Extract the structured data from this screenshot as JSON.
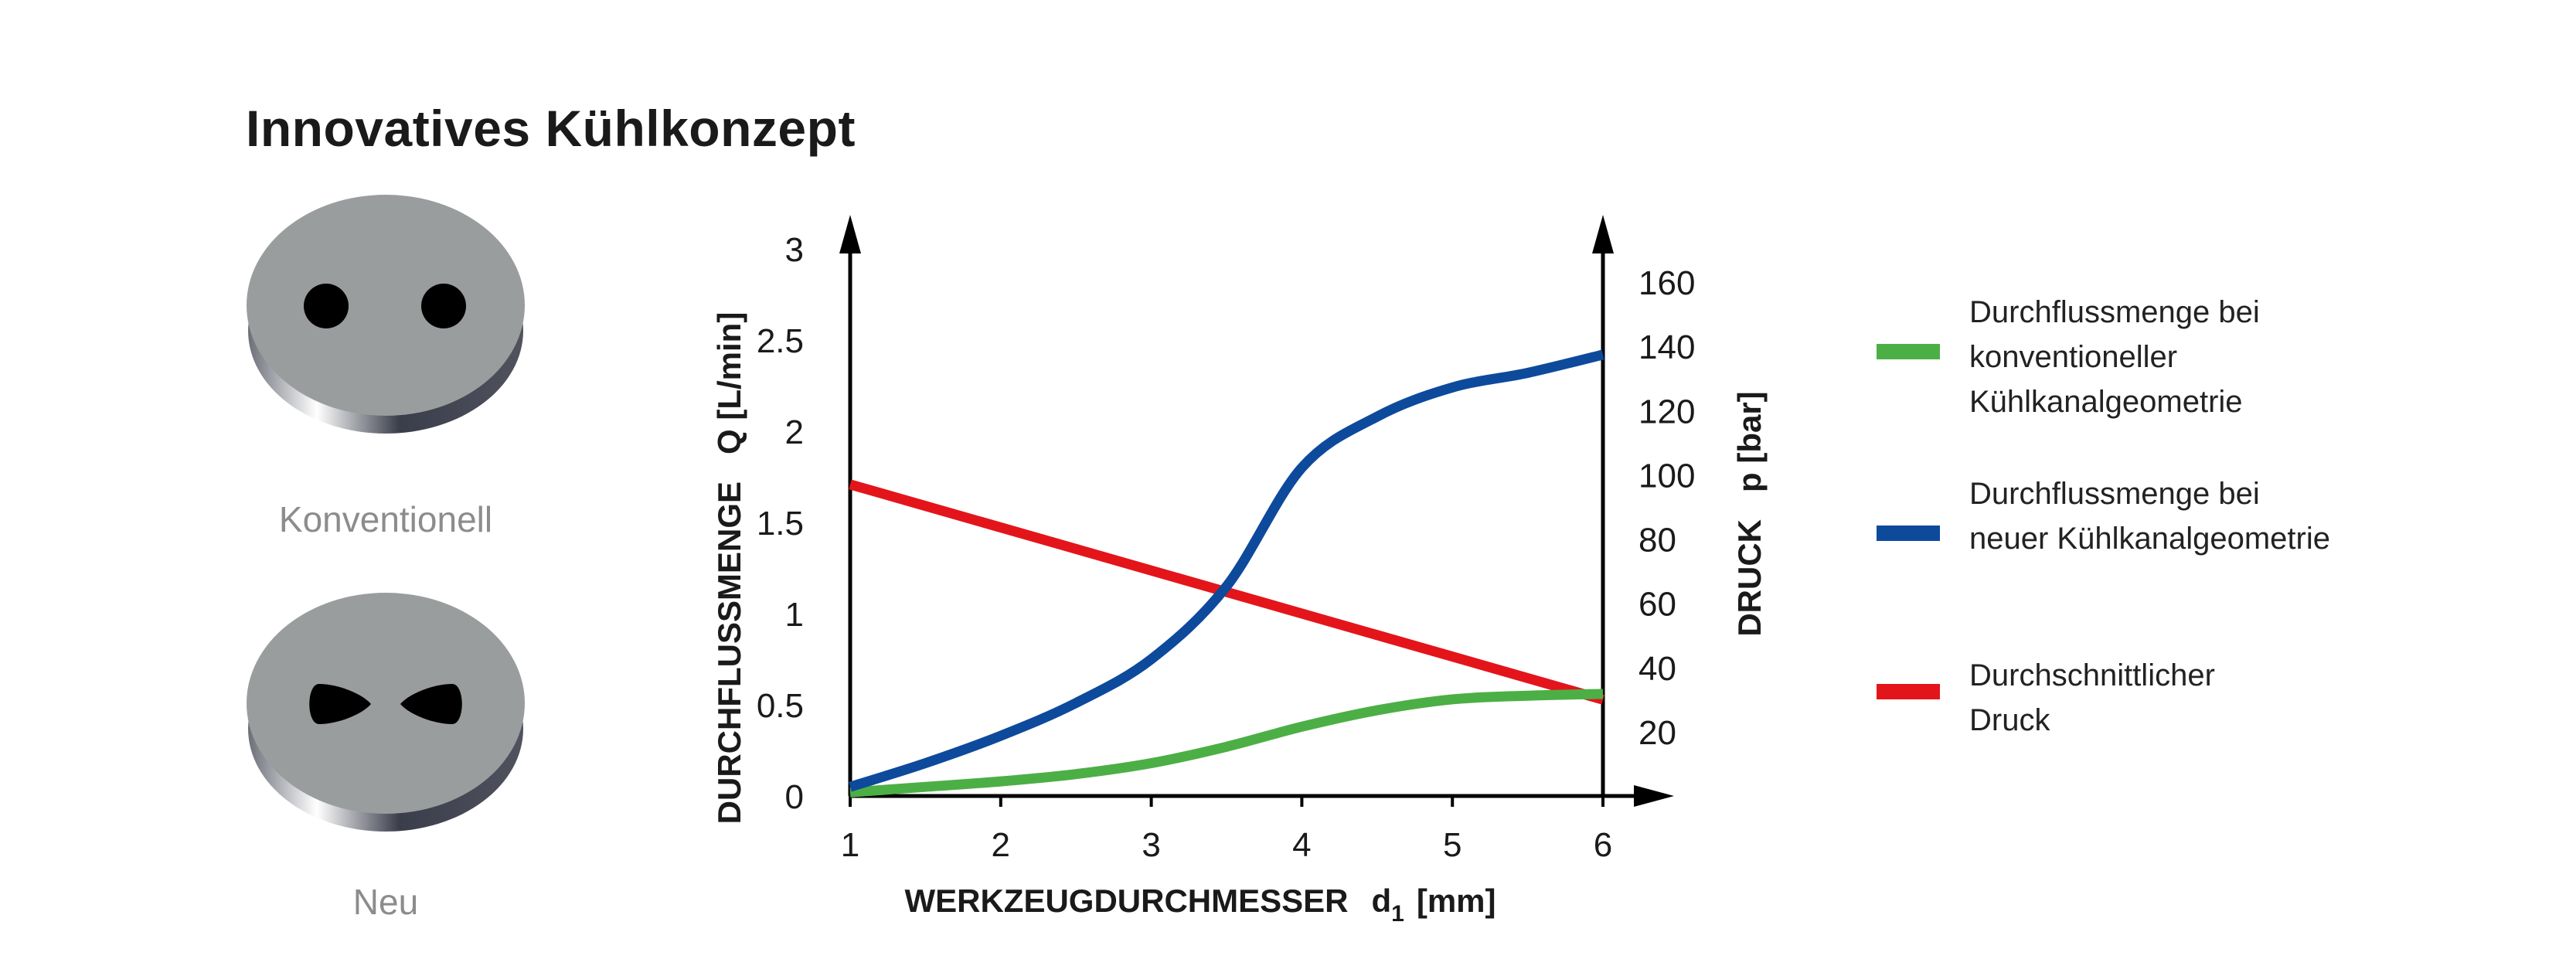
{
  "header": {
    "title": "Innovatives Kühlkonzept"
  },
  "samples": [
    {
      "label": "Konventionell",
      "icon": "conventional-channels-icon"
    },
    {
      "label": "Neu",
      "icon": "new-channels-icon"
    }
  ],
  "chart_data": {
    "type": "line",
    "xlabel": "WERKZEUGDURCHMESSER",
    "xlabel_symbol": "d",
    "xlabel_subscript": "1",
    "xlabel_unit": "[mm]",
    "ylabel_left": "DURCHFLUSSMENGE   Q [L/min]",
    "ylabel_right": "DRUCK   p [bar]",
    "xlim": [
      1,
      6
    ],
    "ylim_left": [
      0,
      3
    ],
    "ylim_right": [
      0,
      160
    ],
    "x_ticks": [
      "1",
      "2",
      "3",
      "4",
      "5",
      "6"
    ],
    "y_left_ticks": [
      "0",
      "0.5",
      "1",
      "1.5",
      "2",
      "2.5",
      "3"
    ],
    "y_right_ticks": [
      "20",
      "40",
      "60",
      "80",
      "100",
      "120",
      "140",
      "160"
    ],
    "grid": false,
    "legend_position": "right",
    "series": [
      {
        "name": "Durchflussmenge bei konventioneller Kühlkanalgeometrie",
        "axis": "left",
        "color": "#4caf45",
        "x": [
          1,
          1.5,
          2,
          2.5,
          3,
          3.5,
          4,
          4.5,
          5,
          5.5,
          6
        ],
        "y": [
          0.02,
          0.05,
          0.08,
          0.12,
          0.18,
          0.27,
          0.38,
          0.47,
          0.53,
          0.55,
          0.56
        ]
      },
      {
        "name": "Durchflussmenge bei neuer Kühlkanalgeometrie",
        "axis": "left",
        "color": "#0d4a9c",
        "x": [
          1,
          1.5,
          2,
          2.5,
          3,
          3.5,
          4,
          4.5,
          5,
          5.5,
          6
        ],
        "y": [
          0.05,
          0.18,
          0.33,
          0.51,
          0.75,
          1.15,
          1.8,
          2.08,
          2.24,
          2.32,
          2.42
        ]
      },
      {
        "name": "Durchschnittlicher Druck",
        "axis": "right",
        "color": "#e3151b",
        "x": [
          1,
          6
        ],
        "y": [
          97,
          30
        ]
      }
    ]
  }
}
